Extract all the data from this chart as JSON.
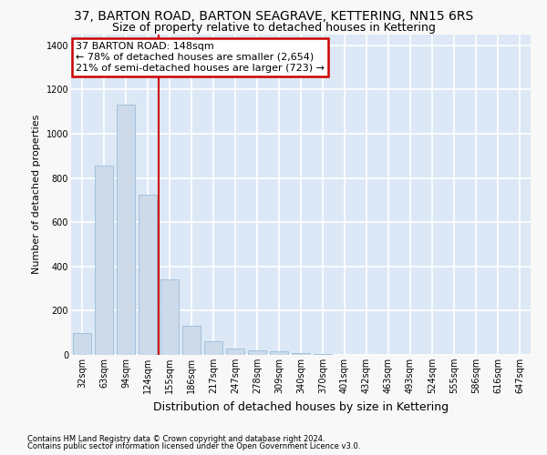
{
  "title": "37, BARTON ROAD, BARTON SEAGRAVE, KETTERING, NN15 6RS",
  "subtitle": "Size of property relative to detached houses in Kettering",
  "xlabel": "Distribution of detached houses by size in Kettering",
  "ylabel": "Number of detached properties",
  "footer_line1": "Contains HM Land Registry data © Crown copyright and database right 2024.",
  "footer_line2": "Contains public sector information licensed under the Open Government Licence v3.0.",
  "bar_labels": [
    "32sqm",
    "63sqm",
    "94sqm",
    "124sqm",
    "155sqm",
    "186sqm",
    "217sqm",
    "247sqm",
    "278sqm",
    "309sqm",
    "340sqm",
    "370sqm",
    "401sqm",
    "432sqm",
    "463sqm",
    "493sqm",
    "524sqm",
    "555sqm",
    "586sqm",
    "616sqm",
    "647sqm"
  ],
  "bar_values": [
    100,
    855,
    1130,
    725,
    340,
    130,
    60,
    30,
    20,
    15,
    10,
    5,
    2,
    0,
    0,
    0,
    0,
    0,
    0,
    0,
    0
  ],
  "bar_color": "#ccdaea",
  "bar_edgecolor": "#9bbcd8",
  "vline_pos": 3.5,
  "vline_color": "#cc0000",
  "ylim_max": 1450,
  "yticks": [
    0,
    200,
    400,
    600,
    800,
    1000,
    1200,
    1400
  ],
  "annotation_line1": "37 BARTON ROAD: 148sqm",
  "annotation_line2": "← 78% of detached houses are smaller (2,654)",
  "annotation_line3": "21% of semi-detached houses are larger (723) →",
  "ann_box_edgecolor": "#cc0000",
  "plot_bg": "#dce8f5",
  "fig_bg": "#f8f8f8",
  "grid_color": "#ffffff",
  "title_fontsize": 10,
  "subtitle_fontsize": 9,
  "tick_fontsize": 7,
  "ylabel_fontsize": 8,
  "xlabel_fontsize": 9,
  "ann_fontsize": 8,
  "footer_fontsize": 6
}
